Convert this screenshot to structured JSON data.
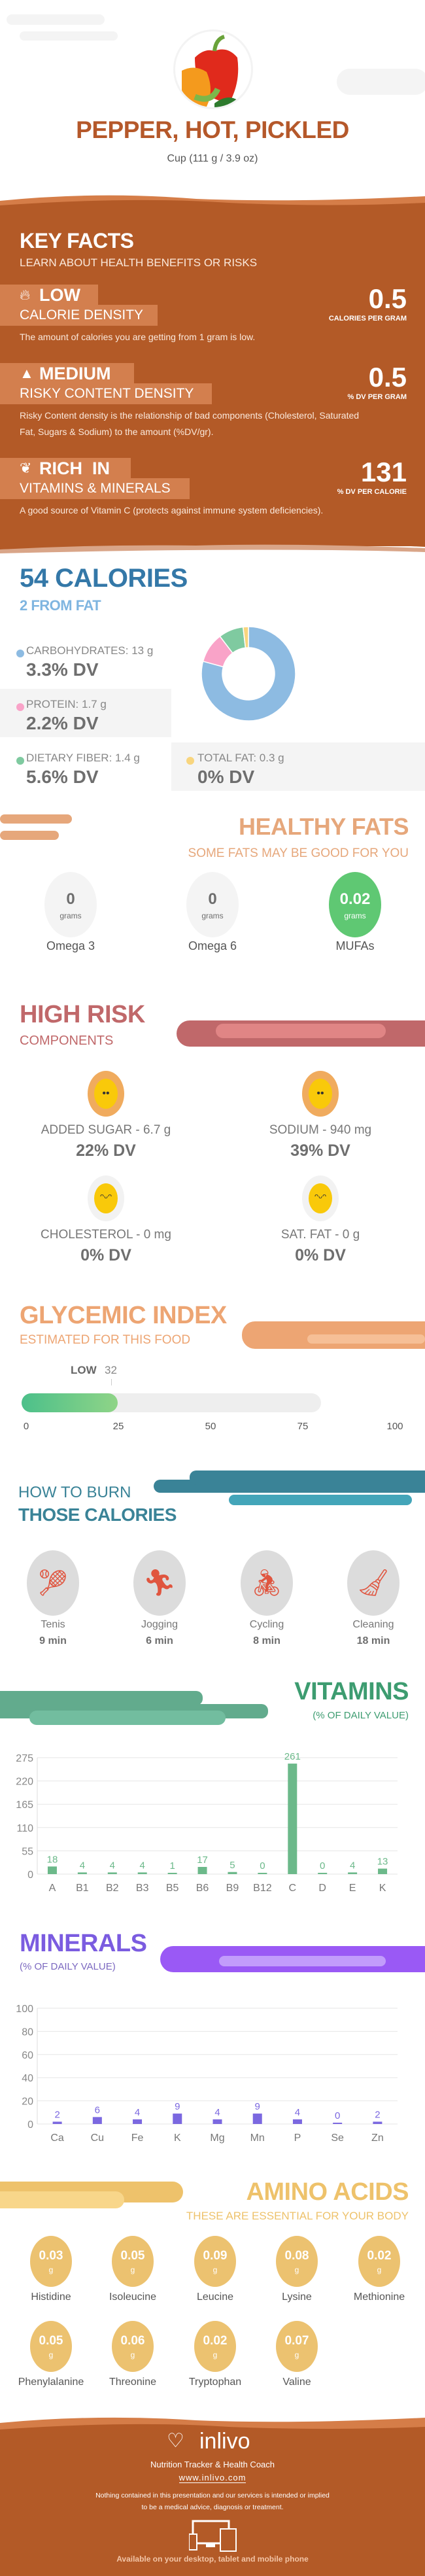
{
  "header": {
    "title": "PEPPER, HOT, PICKLED",
    "serving": "Cup (111 g / 3.9 oz)",
    "image": "pepper-photo"
  },
  "key_facts": {
    "title": "KEY FACTS",
    "subtitle": "LEARN ABOUT HEALTH BENEFITS OR RISKS",
    "items": [
      {
        "icon": "flame-icon",
        "level": "LOW",
        "label": "CALORIE DENSITY",
        "value": "0.5",
        "unit": "CALORIES PER GRAM",
        "text": "The amount of calories you are getting from 1 gram is low."
      },
      {
        "icon": "warning-icon",
        "level": "MEDIUM",
        "label": "RISKY CONTENT DENSITY",
        "value": "0.5",
        "unit": "% DV PER GRAM",
        "text": "Risky Content density is the relationship of bad components (Cholesterol, Saturated Fat, Sugars & Sodium) to the amount (%DV/gr)."
      },
      {
        "icon": "leaf-icon",
        "level": "RICH  IN",
        "label": "VITAMINS & MINERALS",
        "value": "131",
        "unit": "% DV PER CALORIE",
        "text": "A good source of Vitamin C (protects against immune system deficiencies)."
      }
    ]
  },
  "calories": {
    "title": "54 CALORIES",
    "subtitle": "2 FROM FAT",
    "macros": [
      {
        "name": "CARBOHYDRATES: 13 g",
        "dv": "3.3% DV",
        "grams": 13,
        "color": "#8dbbe2"
      },
      {
        "name": "PROTEIN: 1.7 g",
        "dv": "2.2% DV",
        "grams": 1.7,
        "color": "#f9a3c8"
      },
      {
        "name": "DIETARY FIBER: 1.4 g",
        "dv": "5.6% DV",
        "grams": 1.4,
        "color": "#7fcaa0"
      },
      {
        "name": "TOTAL FAT: 0.3 g",
        "dv": "0% DV",
        "grams": 0.3,
        "color": "#f8d57e"
      }
    ]
  },
  "healthy_fats": {
    "title": "HEALTHY FATS",
    "subtitle": "SOME FATS MAY BE GOOD FOR YOU",
    "items": [
      {
        "value": "0",
        "unit": "grams",
        "name": "Omega 3"
      },
      {
        "value": "0",
        "unit": "grams",
        "name": "Omega 6"
      },
      {
        "value": "0.02",
        "unit": "grams",
        "name": "MUFAs"
      }
    ]
  },
  "high_risk": {
    "title": "HIGH RISK",
    "subtitle": "COMPONENTS",
    "items": [
      {
        "name": "ADDED SUGAR - 6.7 g",
        "dv": "22% DV",
        "icon": "smile-face-icon"
      },
      {
        "name": "SODIUM - 940 mg",
        "dv": "39% DV",
        "icon": "smile-face-icon"
      },
      {
        "name": "CHOLESTEROL - 0 mg",
        "dv": "0% DV",
        "icon": "grin-face-icon"
      },
      {
        "name": "SAT. FAT - 0 g",
        "dv": "0% DV",
        "icon": "grin-face-icon"
      }
    ]
  },
  "glycemic": {
    "title": "GLYCEMIC INDEX",
    "subtitle": "ESTIMATED FOR THIS FOOD",
    "level": "LOW",
    "value": 32,
    "value_label": "32",
    "ticks": [
      "0",
      "25",
      "50",
      "75",
      "100"
    ]
  },
  "burn": {
    "title_line1": "HOW TO BURN",
    "title_line2": "THOSE CALORIES",
    "activities": [
      {
        "name": "Tenis",
        "time": "9 min",
        "icon": "tennis-player-icon"
      },
      {
        "name": "Jogging",
        "time": "6 min",
        "icon": "runner-icon"
      },
      {
        "name": "Cycling",
        "time": "8 min",
        "icon": "cyclist-icon"
      },
      {
        "name": "Cleaning",
        "time": "18 min",
        "icon": "cleaning-person-icon"
      }
    ]
  },
  "chart_data": [
    {
      "type": "bar",
      "title": "VITAMINS",
      "subtitle": "(% OF DAILY VALUE)",
      "categories": [
        "A",
        "B1",
        "B2",
        "B3",
        "B5",
        "B6",
        "B9",
        "B12",
        "C",
        "D",
        "E",
        "K"
      ],
      "values": [
        18,
        4,
        4,
        4,
        1,
        17,
        5,
        0,
        261,
        0,
        4,
        13
      ],
      "yticks": [
        "0",
        "55",
        "110",
        "165",
        "220",
        "275"
      ],
      "ylim": [
        0,
        275
      ],
      "grid": true,
      "color": "#6cb98a"
    },
    {
      "type": "bar",
      "title": "MINERALS",
      "subtitle": "(% OF DAILY VALUE)",
      "categories": [
        "Ca",
        "Cu",
        "Fe",
        "K",
        "Mg",
        "Mn",
        "P",
        "Se",
        "Zn"
      ],
      "values": [
        2,
        6,
        4,
        9,
        4,
        9,
        4,
        0,
        2
      ],
      "yticks": [
        "0",
        "20",
        "40",
        "60",
        "80",
        "100"
      ],
      "ylim": [
        0,
        100
      ],
      "grid": true,
      "color": "#7b68e0"
    }
  ],
  "amino": {
    "title": "AMINO ACIDS",
    "subtitle": "THESE ARE ESSENTIAL FOR YOUR BODY",
    "items": [
      {
        "value": "0.03",
        "unit": "g",
        "name": "Histidine"
      },
      {
        "value": "0.05",
        "unit": "g",
        "name": "Isoleucine"
      },
      {
        "value": "0.09",
        "unit": "g",
        "name": "Leucine"
      },
      {
        "value": "0.08",
        "unit": "g",
        "name": "Lysine"
      },
      {
        "value": "0.02",
        "unit": "g",
        "name": "Methionine"
      },
      {
        "value": "0.05",
        "unit": "g",
        "name": "Phenylalanine"
      },
      {
        "value": "0.06",
        "unit": "g",
        "name": "Threonine"
      },
      {
        "value": "0.02",
        "unit": "g",
        "name": "Tryptophan"
      },
      {
        "value": "0.07",
        "unit": "g",
        "name": "Valine"
      }
    ]
  },
  "footer": {
    "brand": "inlivo",
    "tagline": "Nutrition Tracker & Health Coach",
    "url": "www.inlivo.com",
    "disclaimer_1": "Nothing contained in this presentation and our services is intended or implied",
    "disclaimer_2": "to be a medical advice, diagnosis or treatment.",
    "available": "Available on your desktop, tablet and mobile phone"
  }
}
